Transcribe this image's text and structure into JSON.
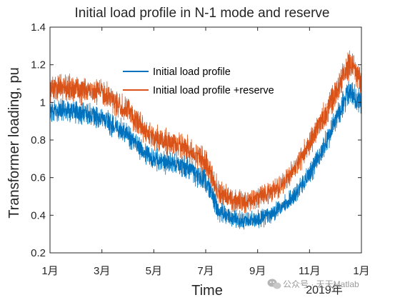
{
  "chart_data": {
    "type": "line",
    "title": "Initial load profile in N-1 mode and reserve",
    "xlabel": "Time",
    "ylabel": "Transformer loading, pu",
    "x_tick_labels": [
      "1月",
      "3月",
      "5月",
      "7月",
      "9月",
      "11月",
      "1月"
    ],
    "x_tick_months": [
      0,
      2,
      4,
      6,
      8,
      10,
      12
    ],
    "x_year_label": "2019年",
    "xlim": [
      0,
      12
    ],
    "ylim": [
      0.2,
      1.4
    ],
    "y_ticks": [
      0.2,
      0.4,
      0.6,
      0.8,
      1.0,
      1.2,
      1.4
    ],
    "y_tick_labels": [
      "0.2",
      "0.4",
      "0.6",
      "0.8",
      "1",
      "1.2",
      "1.4"
    ],
    "grid": false,
    "legend_position": "upper-center",
    "series": [
      {
        "name": "Initial load profile",
        "color": "#0072BD",
        "months": [
          0,
          0.5,
          1,
          1.5,
          2,
          2.5,
          3,
          3.5,
          4,
          4.5,
          5,
          5.5,
          6,
          6.5,
          7,
          7.5,
          8,
          8.5,
          9,
          9.5,
          10,
          10.5,
          11,
          11.5,
          12
        ],
        "mean": [
          0.95,
          0.96,
          0.95,
          0.93,
          0.92,
          0.87,
          0.83,
          0.75,
          0.7,
          0.68,
          0.67,
          0.63,
          0.58,
          0.42,
          0.38,
          0.37,
          0.38,
          0.4,
          0.45,
          0.52,
          0.62,
          0.75,
          0.9,
          1.05,
          1.0
        ],
        "spread": [
          0.05,
          0.05,
          0.05,
          0.05,
          0.05,
          0.05,
          0.05,
          0.05,
          0.05,
          0.05,
          0.05,
          0.05,
          0.05,
          0.05,
          0.04,
          0.04,
          0.04,
          0.04,
          0.04,
          0.04,
          0.05,
          0.05,
          0.06,
          0.06,
          0.06
        ],
        "min": 0.32,
        "max": 1.16
      },
      {
        "name": "Initial load profile +reserve",
        "color": "#D95319",
        "months": [
          0,
          0.5,
          1,
          1.5,
          2,
          2.5,
          3,
          3.5,
          4,
          4.5,
          5,
          5.5,
          6,
          6.5,
          7,
          7.5,
          8,
          8.5,
          9,
          9.5,
          10,
          10.5,
          11,
          11.5,
          12
        ],
        "mean": [
          1.07,
          1.08,
          1.07,
          1.06,
          1.05,
          1.0,
          0.96,
          0.87,
          0.81,
          0.79,
          0.78,
          0.73,
          0.68,
          0.52,
          0.48,
          0.47,
          0.49,
          0.52,
          0.57,
          0.66,
          0.78,
          0.91,
          1.05,
          1.2,
          1.12
        ],
        "spread": [
          0.06,
          0.06,
          0.06,
          0.06,
          0.06,
          0.06,
          0.06,
          0.06,
          0.06,
          0.06,
          0.06,
          0.06,
          0.06,
          0.06,
          0.05,
          0.05,
          0.05,
          0.05,
          0.05,
          0.05,
          0.06,
          0.06,
          0.07,
          0.07,
          0.07
        ],
        "min": 0.38,
        "max": 1.32
      }
    ]
  },
  "watermark": {
    "text": "公众号 · 天天Matlab",
    "icon": "wechat-icon"
  }
}
